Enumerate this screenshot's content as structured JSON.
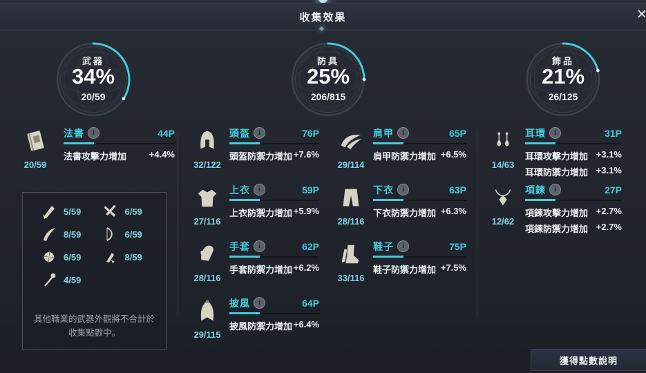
{
  "colors": {
    "accent": "#45cbd9",
    "count_color": "#7ed3de"
  },
  "header": {
    "title": "收集效果",
    "close_icon": "✕"
  },
  "gauges": [
    {
      "label": "武器",
      "percent": "34%",
      "count": "20/59",
      "pct": 34
    },
    {
      "label": "防具",
      "percent": "25%",
      "count": "206/815",
      "pct": 25
    },
    {
      "label": "飾品",
      "percent": "21%",
      "count": "26/125",
      "pct": 21
    }
  ],
  "entries": [
    {
      "name": "法書",
      "points": "44P",
      "count": "20/59",
      "effects": [
        {
          "label": "法書攻擊力增加",
          "value": "+4.4%"
        }
      ]
    },
    {
      "name": "頭盔",
      "points": "76P",
      "count": "32/122",
      "effects": [
        {
          "label": "頭盔防禦力增加",
          "value": "+7.6%"
        }
      ]
    },
    {
      "name": "上衣",
      "points": "59P",
      "count": "27/116",
      "effects": [
        {
          "label": "上衣防禦力增加",
          "value": "+5.9%"
        }
      ]
    },
    {
      "name": "手套",
      "points": "62P",
      "count": "28/116",
      "effects": [
        {
          "label": "手套防禦力增加",
          "value": "+6.2%"
        }
      ]
    },
    {
      "name": "披風",
      "points": "64P",
      "count": "29/115",
      "effects": [
        {
          "label": "披風防禦力增加",
          "value": "+6.4%"
        }
      ]
    },
    {
      "name": "肩甲",
      "points": "65P",
      "count": "29/114",
      "effects": [
        {
          "label": "肩甲防禦力增加",
          "value": "+6.5%"
        }
      ]
    },
    {
      "name": "下衣",
      "points": "63P",
      "count": "28/116",
      "effects": [
        {
          "label": "下衣防禦力增加",
          "value": "+6.3%"
        }
      ]
    },
    {
      "name": "鞋子",
      "points": "75P",
      "count": "33/116",
      "effects": [
        {
          "label": "鞋子防禦力增加",
          "value": "+7.5%"
        }
      ]
    },
    {
      "name": "耳環",
      "points": "31P",
      "count": "14/63",
      "effects": [
        {
          "label": "耳環攻擊力增加",
          "value": "+3.1%"
        },
        {
          "label": "耳環防禦力增加",
          "value": "+3.1%"
        }
      ]
    },
    {
      "name": "項鍊",
      "points": "27P",
      "count": "12/62",
      "effects": [
        {
          "label": "項鍊攻擊力增加",
          "value": "+2.7%"
        },
        {
          "label": "項鍊防禦力增加",
          "value": "+2.7%"
        }
      ]
    }
  ],
  "other_weapons": {
    "items": [
      {
        "icon": "greatsword-icon",
        "count": "5/59"
      },
      {
        "icon": "dual-swords-icon",
        "count": "6/59"
      },
      {
        "icon": "spear-icon",
        "count": "8/59"
      },
      {
        "icon": "bow-icon",
        "count": "6/59"
      },
      {
        "icon": "chakram-icon",
        "count": "6/59"
      },
      {
        "icon": "dagger-icon",
        "count": "8/59"
      },
      {
        "icon": "staff-icon",
        "count": "4/59"
      }
    ],
    "note": "其他職業的武器外觀將不合計於收集點數中。"
  },
  "footer": {
    "points_info_button": "獲得點數說明"
  }
}
